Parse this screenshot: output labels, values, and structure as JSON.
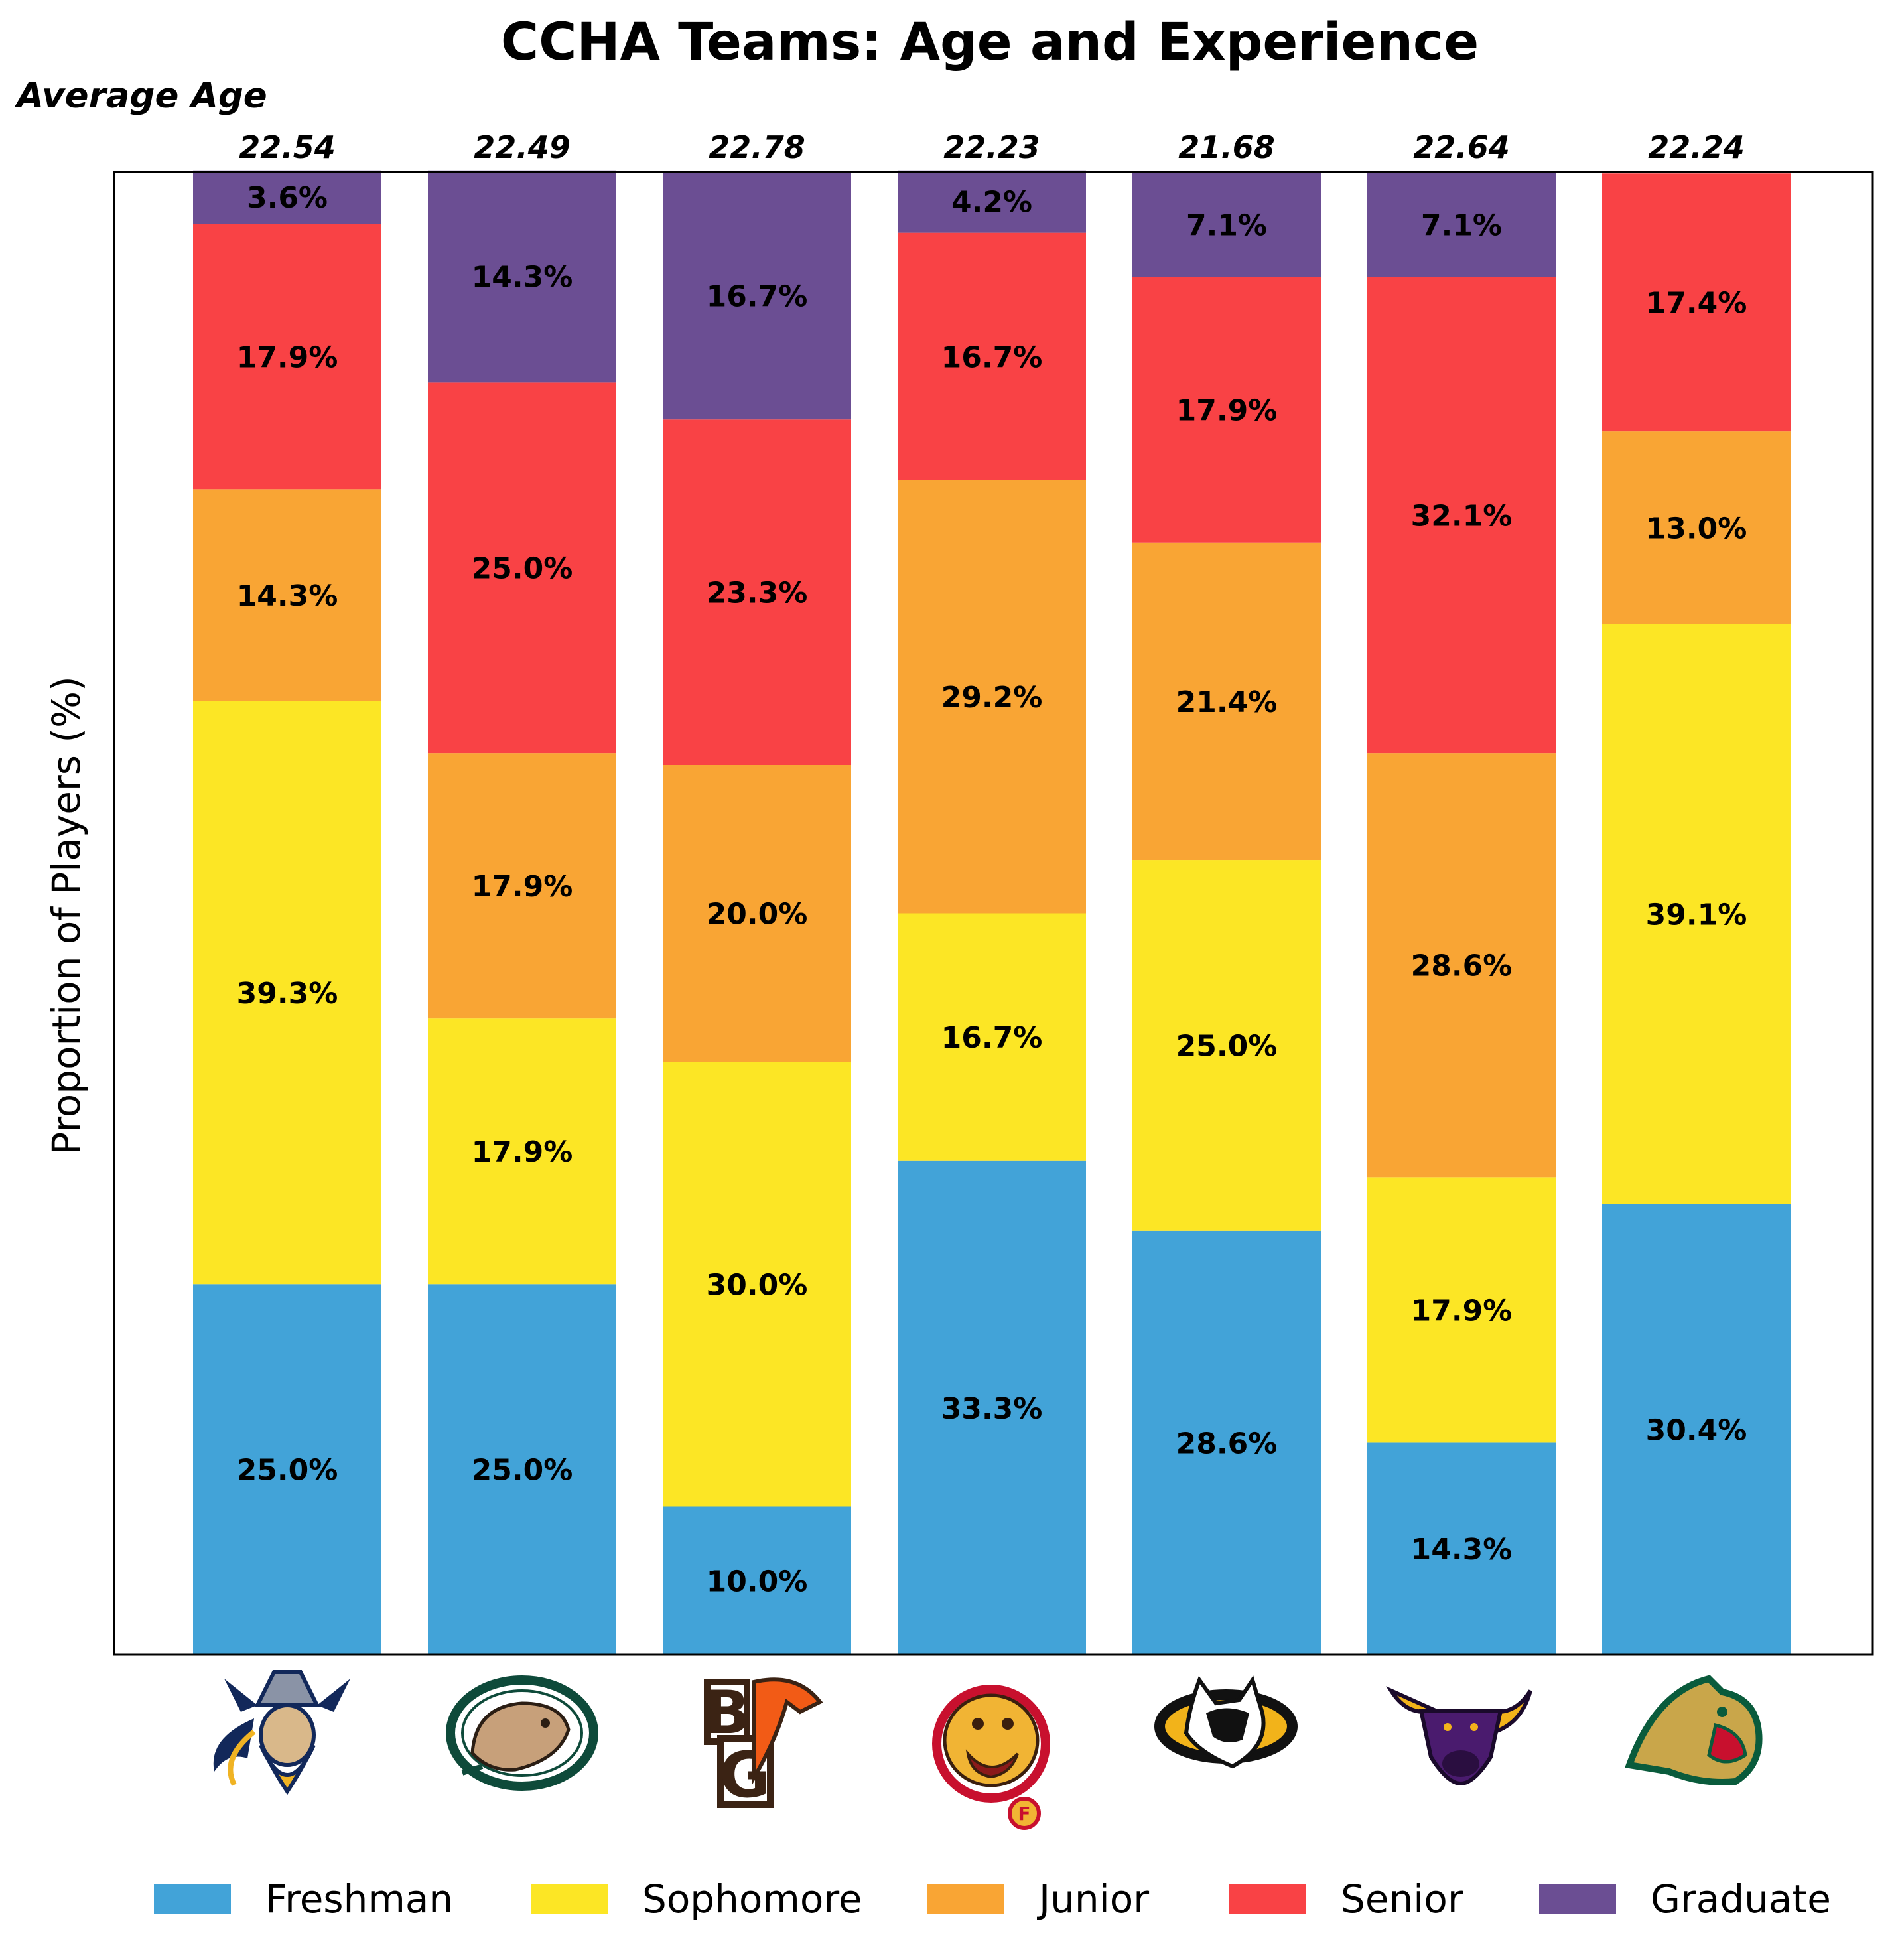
{
  "chart_data": {
    "type": "bar",
    "stacked": true,
    "title": "CCHA Teams: Age and Experience",
    "ylabel": "Proportion of Players (%)",
    "xlabel": "",
    "ylim": [
      0,
      100
    ],
    "grid": false,
    "legend_position": "bottom",
    "top_annotation_heading": "Average Age",
    "categories": [
      "Augustana",
      "Bemidji State",
      "Bowling Green",
      "Ferris State",
      "Michigan Tech",
      "Minnesota State",
      "Northern Michigan"
    ],
    "category_logos": [
      "viking-logo",
      "beaver-logo",
      "bg-falcon-logo",
      "bulldog-logo",
      "husky-logo",
      "maverick-bull-logo",
      "wildcat-logo"
    ],
    "average_age": [
      "22.54",
      "22.49",
      "22.78",
      "22.23",
      "21.68",
      "22.64",
      "22.24"
    ],
    "series": [
      {
        "name": "Freshman",
        "color": "#42a3d8",
        "values": [
          25.0,
          25.0,
          10.0,
          33.3,
          28.6,
          14.3,
          30.4
        ],
        "labels": [
          "25.0%",
          "25.0%",
          "10.0%",
          "33.3%",
          "28.6%",
          "14.3%",
          "30.4%"
        ]
      },
      {
        "name": "Sophomore",
        "color": "#fce625",
        "values": [
          39.3,
          17.9,
          30.0,
          16.7,
          25.0,
          17.9,
          39.1
        ],
        "labels": [
          "39.3%",
          "17.9%",
          "30.0%",
          "16.7%",
          "25.0%",
          "17.9%",
          "39.1%"
        ]
      },
      {
        "name": "Junior",
        "color": "#f9a534",
        "values": [
          14.3,
          17.9,
          20.0,
          29.2,
          21.4,
          28.6,
          13.0
        ],
        "labels": [
          "14.3%",
          "17.9%",
          "20.0%",
          "29.2%",
          "21.4%",
          "28.6%",
          "13.0%"
        ]
      },
      {
        "name": "Senior",
        "color": "#f94245",
        "values": [
          17.9,
          25.0,
          23.3,
          16.7,
          17.9,
          32.1,
          17.4
        ],
        "labels": [
          "17.9%",
          "25.0%",
          "23.3%",
          "16.7%",
          "17.9%",
          "32.1%",
          "17.4%"
        ]
      },
      {
        "name": "Graduate",
        "color": "#6b4e93",
        "values": [
          3.6,
          14.3,
          16.7,
          4.2,
          7.1,
          7.1,
          0
        ],
        "labels": [
          "3.6%",
          "14.3%",
          "16.7%",
          "4.2%",
          "7.1%",
          "7.1%",
          ""
        ]
      }
    ]
  }
}
